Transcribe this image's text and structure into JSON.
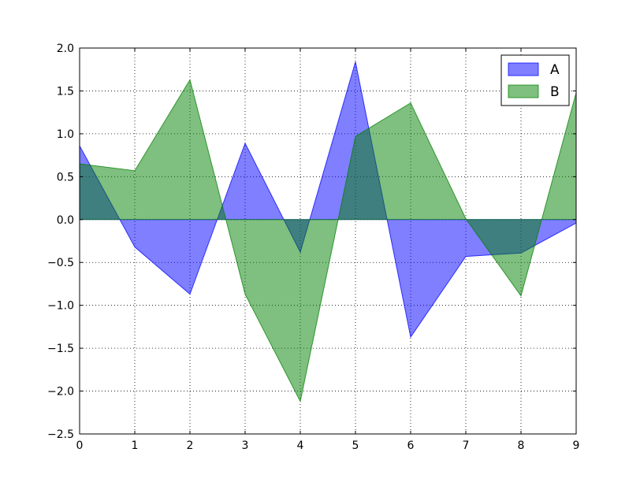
{
  "chart_data": {
    "type": "area",
    "x": [
      0,
      1,
      2,
      3,
      4,
      5,
      6,
      7,
      8,
      9
    ],
    "xlim": [
      0,
      9
    ],
    "ylim": [
      -2.5,
      2.0
    ],
    "xticks": [
      0,
      1,
      2,
      3,
      4,
      5,
      6,
      7,
      8,
      9
    ],
    "yticks": [
      -2.5,
      -2.0,
      -1.5,
      -1.0,
      -0.5,
      0.0,
      0.5,
      1.0,
      1.5,
      2.0
    ],
    "xtick_labels": [
      "0",
      "1",
      "2",
      "3",
      "4",
      "5",
      "6",
      "7",
      "8",
      "9"
    ],
    "ytick_labels": [
      "−2.5",
      "−2.0",
      "−1.5",
      "−1.0",
      "−0.5",
      "0.0",
      "0.5",
      "1.0",
      "1.5",
      "2.0"
    ],
    "grid": true,
    "legend_position": "top-right",
    "series": [
      {
        "name": "A",
        "color": "#0000ff",
        "values": [
          0.86,
          -0.32,
          -0.87,
          0.89,
          -0.38,
          1.84,
          -1.37,
          -0.43,
          -0.39,
          -0.04
        ]
      },
      {
        "name": "B",
        "color": "#008000",
        "values": [
          0.65,
          0.57,
          1.63,
          -0.87,
          -2.12,
          0.97,
          1.36,
          0.01,
          -0.89,
          1.48
        ]
      }
    ]
  }
}
